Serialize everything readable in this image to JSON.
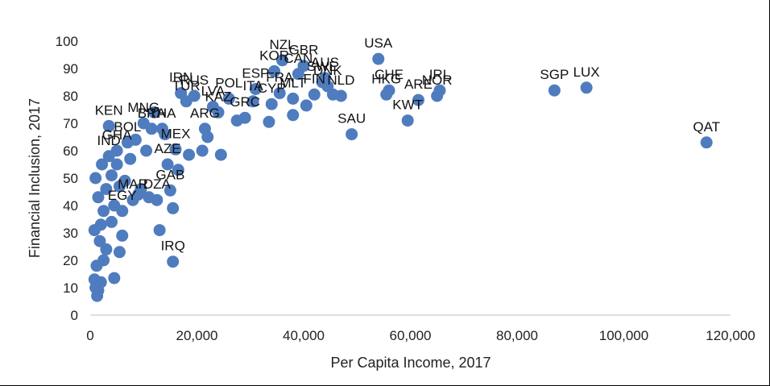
{
  "chart_data": {
    "type": "scatter",
    "title": "",
    "xlabel": "Per Capita Income, 2017",
    "ylabel": "Financial Inclusion, 2017",
    "xlim": [
      0,
      120000
    ],
    "ylim": [
      0,
      100
    ],
    "x_ticks": [
      "0",
      "20,000",
      "40,000",
      "60,000",
      "80,000",
      "100,000",
      "120,000"
    ],
    "y_ticks": [
      "0",
      "10",
      "20",
      "30",
      "40",
      "50",
      "60",
      "70",
      "80",
      "90",
      "100"
    ],
    "grid": false,
    "legend": "none",
    "marker_color": "#4f7cbe",
    "points": [
      {
        "x": 115500,
        "y": 63,
        "label": "QAT"
      },
      {
        "x": 93000,
        "y": 83,
        "label": "LUX"
      },
      {
        "x": 87000,
        "y": 82,
        "label": "SGP"
      },
      {
        "x": 65500,
        "y": 82,
        "label": "IRL"
      },
      {
        "x": 65000,
        "y": 80,
        "label": "NOR"
      },
      {
        "x": 61500,
        "y": 78.5,
        "label": "ARE"
      },
      {
        "x": 59500,
        "y": 71,
        "label": "KWT"
      },
      {
        "x": 56000,
        "y": 82,
        "label": "CHE"
      },
      {
        "x": 55500,
        "y": 80.5,
        "label": "HKG"
      },
      {
        "x": 54000,
        "y": 93.5,
        "label": "USA"
      },
      {
        "x": 49000,
        "y": 66,
        "label": "SAU"
      },
      {
        "x": 47000,
        "y": 80,
        "label": "NLD"
      },
      {
        "x": 45500,
        "y": 80.5,
        "label": ""
      },
      {
        "x": 44500,
        "y": 83.5,
        "label": "DNK"
      },
      {
        "x": 44000,
        "y": 86.5,
        "label": "AUS"
      },
      {
        "x": 43500,
        "y": 85,
        "label": "SWE"
      },
      {
        "x": 42000,
        "y": 80.5,
        "label": "FIN"
      },
      {
        "x": 40500,
        "y": 76.5,
        "label": ""
      },
      {
        "x": 40000,
        "y": 91,
        "label": "GBR"
      },
      {
        "x": 39000,
        "y": 88,
        "label": "CAN"
      },
      {
        "x": 38000,
        "y": 79,
        "label": "MLT"
      },
      {
        "x": 38000,
        "y": 73,
        "label": ""
      },
      {
        "x": 36000,
        "y": 93,
        "label": "NZL"
      },
      {
        "x": 35500,
        "y": 81,
        "label": "FRA"
      },
      {
        "x": 34500,
        "y": 89,
        "label": "KOR"
      },
      {
        "x": 34000,
        "y": 77,
        "label": "CYP"
      },
      {
        "x": 33500,
        "y": 70.5,
        "label": ""
      },
      {
        "x": 31000,
        "y": 82.5,
        "label": "ESP"
      },
      {
        "x": 30500,
        "y": 78,
        "label": "ITA"
      },
      {
        "x": 29000,
        "y": 72,
        "label": "GRC"
      },
      {
        "x": 27500,
        "y": 71,
        "label": ""
      },
      {
        "x": 26000,
        "y": 79,
        "label": "POL"
      },
      {
        "x": 24500,
        "y": 58.5,
        "label": ""
      },
      {
        "x": 24000,
        "y": 74,
        "label": "KAZ"
      },
      {
        "x": 23000,
        "y": 76,
        "label": "LVA"
      },
      {
        "x": 22000,
        "y": 65,
        "label": ""
      },
      {
        "x": 21500,
        "y": 68,
        "label": "ARG"
      },
      {
        "x": 21000,
        "y": 60,
        "label": ""
      },
      {
        "x": 19500,
        "y": 80,
        "label": "RUS"
      },
      {
        "x": 18500,
        "y": 58.5,
        "label": ""
      },
      {
        "x": 18000,
        "y": 78,
        "label": "TUR"
      },
      {
        "x": 17000,
        "y": 81,
        "label": "IRN"
      },
      {
        "x": 16500,
        "y": 53,
        "label": ""
      },
      {
        "x": 16000,
        "y": 60.5,
        "label": "MEX"
      },
      {
        "x": 15500,
        "y": 39,
        "label": ""
      },
      {
        "x": 15500,
        "y": 19.5,
        "label": "IRQ"
      },
      {
        "x": 15000,
        "y": 45.5,
        "label": "GAB"
      },
      {
        "x": 14500,
        "y": 55,
        "label": "AZE"
      },
      {
        "x": 14000,
        "y": 66,
        "label": ""
      },
      {
        "x": 13500,
        "y": 68,
        "label": "THA"
      },
      {
        "x": 13000,
        "y": 31,
        "label": ""
      },
      {
        "x": 12500,
        "y": 42,
        "label": "DZA"
      },
      {
        "x": 12000,
        "y": 74,
        "label": ""
      },
      {
        "x": 11500,
        "y": 68,
        "label": "BRA"
      },
      {
        "x": 11000,
        "y": 43,
        "label": ""
      },
      {
        "x": 10500,
        "y": 60,
        "label": ""
      },
      {
        "x": 10000,
        "y": 70,
        "label": "MNG"
      },
      {
        "x": 9500,
        "y": 46,
        "label": ""
      },
      {
        "x": 9000,
        "y": 44,
        "label": ""
      },
      {
        "x": 8500,
        "y": 64,
        "label": ""
      },
      {
        "x": 8000,
        "y": 42,
        "label": "MAR"
      },
      {
        "x": 7500,
        "y": 57,
        "label": ""
      },
      {
        "x": 7000,
        "y": 63,
        "label": "BOL"
      },
      {
        "x": 6500,
        "y": 49,
        "label": ""
      },
      {
        "x": 6000,
        "y": 29,
        "label": ""
      },
      {
        "x": 6000,
        "y": 38,
        "label": "EGY"
      },
      {
        "x": 5500,
        "y": 23,
        "label": ""
      },
      {
        "x": 5500,
        "y": 47,
        "label": ""
      },
      {
        "x": 5000,
        "y": 55,
        "label": ""
      },
      {
        "x": 5000,
        "y": 60,
        "label": "GHA"
      },
      {
        "x": 4500,
        "y": 40,
        "label": ""
      },
      {
        "x": 4500,
        "y": 13.5,
        "label": ""
      },
      {
        "x": 4000,
        "y": 34,
        "label": ""
      },
      {
        "x": 4000,
        "y": 51,
        "label": ""
      },
      {
        "x": 3500,
        "y": 58,
        "label": "IND"
      },
      {
        "x": 3500,
        "y": 69,
        "label": "KEN"
      },
      {
        "x": 3000,
        "y": 46,
        "label": ""
      },
      {
        "x": 3000,
        "y": 24,
        "label": ""
      },
      {
        "x": 2500,
        "y": 38,
        "label": ""
      },
      {
        "x": 2500,
        "y": 20,
        "label": ""
      },
      {
        "x": 2200,
        "y": 55,
        "label": ""
      },
      {
        "x": 2000,
        "y": 33,
        "label": ""
      },
      {
        "x": 2000,
        "y": 12,
        "label": ""
      },
      {
        "x": 1800,
        "y": 27,
        "label": ""
      },
      {
        "x": 1500,
        "y": 9,
        "label": ""
      },
      {
        "x": 1500,
        "y": 43,
        "label": ""
      },
      {
        "x": 1300,
        "y": 7,
        "label": ""
      },
      {
        "x": 1200,
        "y": 18,
        "label": ""
      },
      {
        "x": 1000,
        "y": 10,
        "label": ""
      },
      {
        "x": 1000,
        "y": 50,
        "label": ""
      },
      {
        "x": 800,
        "y": 13,
        "label": ""
      },
      {
        "x": 800,
        "y": 31,
        "label": ""
      }
    ]
  }
}
